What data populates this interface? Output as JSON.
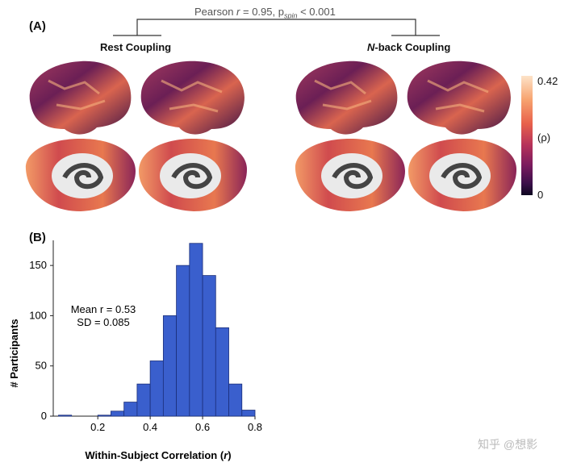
{
  "panel_a": {
    "label": "(A)",
    "stats_prefix": "Pearson ",
    "stats_r": "r",
    "stats_mid": " = 0.95, p",
    "stats_sub": "spin",
    "stats_suffix": " < 0.001",
    "rest_title": "Rest Coupling",
    "nback_title_italic": "N",
    "nback_title_rest": "-back Coupling",
    "colorbar_max": "0.42",
    "colorbar_mid": "(ρ)",
    "colorbar_min": "0",
    "colors": {
      "high": "#fde3c8",
      "mid": "#e8614b",
      "low": "#0d0620"
    }
  },
  "panel_b": {
    "label": "(B)",
    "annotation_line1": "Mean r = 0.53",
    "annotation_line2": "SD = 0.085",
    "bar_color": "#3a5fcd"
  },
  "chart_data": {
    "type": "bar",
    "title": "",
    "xlabel": "Within-Subject Correlation (r)",
    "ylabel": "# Participants",
    "bin_width": 0.05,
    "bin_starts": [
      0.05,
      0.1,
      0.15,
      0.2,
      0.25,
      0.3,
      0.35,
      0.4,
      0.45,
      0.5,
      0.55,
      0.6,
      0.65,
      0.7,
      0.75
    ],
    "values": [
      1,
      0,
      0,
      1,
      5,
      14,
      32,
      55,
      100,
      150,
      172,
      140,
      88,
      32,
      6
    ],
    "xlim": [
      0.03,
      0.8
    ],
    "ylim": [
      0,
      175
    ],
    "xticks": [
      "0.2",
      "0.4",
      "0.6",
      "0.8"
    ],
    "xtick_values": [
      0.2,
      0.4,
      0.6,
      0.8
    ],
    "yticks": [
      "0",
      "50",
      "100",
      "150"
    ],
    "ytick_values": [
      0,
      50,
      100,
      150
    ],
    "grid": false
  },
  "watermark": "知乎 @想影"
}
